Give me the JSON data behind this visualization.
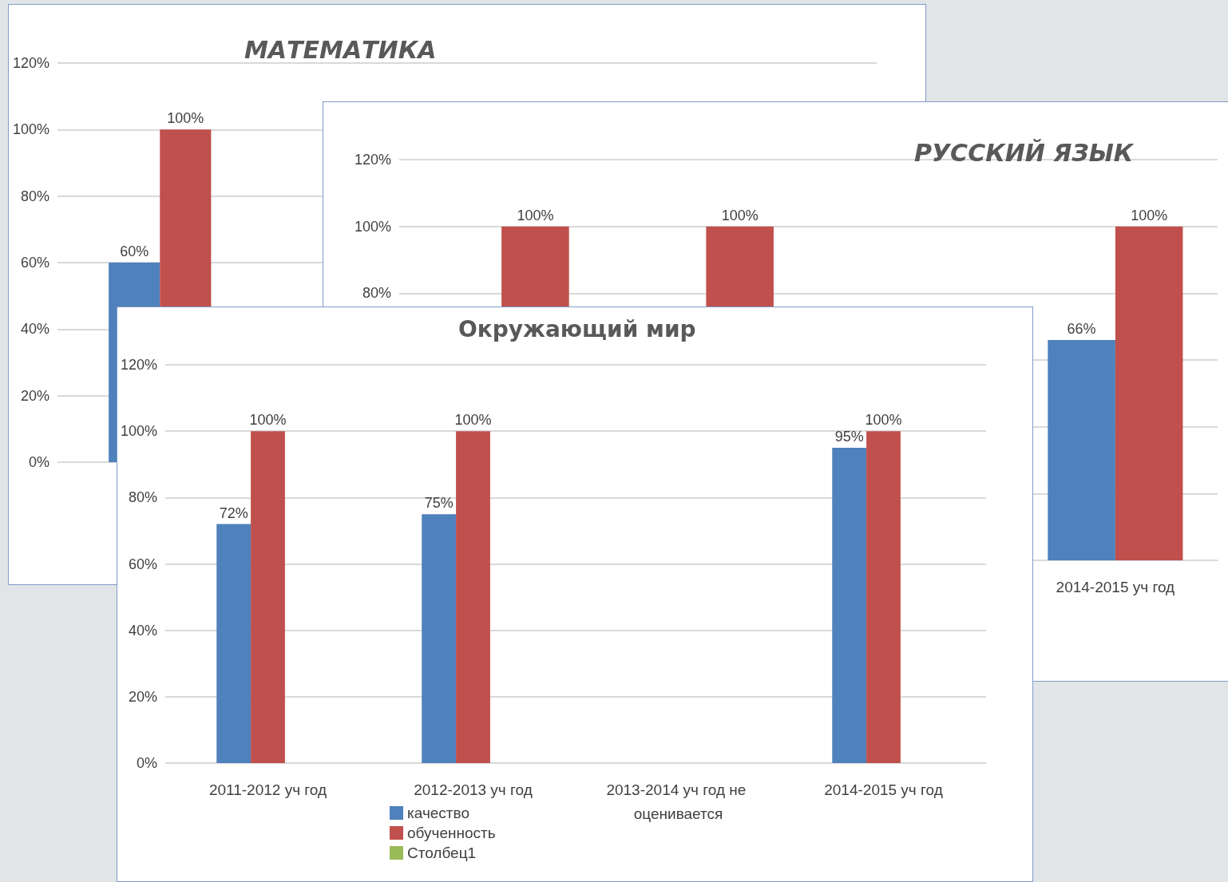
{
  "chart_data": [
    {
      "type": "bar",
      "title": "МАТЕМАТИКА",
      "categories": [
        null,
        null,
        null,
        null
      ],
      "ylim": [
        0,
        120
      ],
      "yticks": [
        {
          "value": 0,
          "label": "0%"
        },
        {
          "value": 20,
          "label": "20%"
        },
        {
          "value": 40,
          "label": "40%"
        },
        {
          "value": 60,
          "label": "60%"
        },
        {
          "value": 80,
          "label": "80%"
        },
        {
          "value": 100,
          "label": "100%"
        },
        {
          "value": 120,
          "label": "120%"
        }
      ],
      "grid": "y",
      "series": [
        {
          "color": "#4f81bd",
          "values": [
            60,
            null,
            null,
            null
          ],
          "value_labels": [
            "60%",
            null,
            null,
            null
          ]
        },
        {
          "color": "#c0504d",
          "values": [
            100,
            null,
            null,
            null
          ],
          "value_labels": [
            "100%",
            null,
            null,
            null
          ]
        }
      ]
    },
    {
      "type": "bar",
      "title": "РУССКИЙ ЯЗЫК",
      "categories": [
        null,
        null,
        null,
        "2014-2015 уч год"
      ],
      "ylim": [
        0,
        120
      ],
      "yticks": [
        {
          "value": 0,
          "label": null
        },
        {
          "value": 20,
          "label": null
        },
        {
          "value": 40,
          "label": null
        },
        {
          "value": 60,
          "label": null
        },
        {
          "value": 80,
          "label": "80%"
        },
        {
          "value": 100,
          "label": "100%"
        },
        {
          "value": 120,
          "label": "120%"
        }
      ],
      "grid": "y",
      "series": [
        {
          "color": "#4f81bd",
          "values": [
            null,
            null,
            null,
            66
          ],
          "value_labels": [
            null,
            null,
            null,
            "66%"
          ]
        },
        {
          "color": "#c0504d",
          "values": [
            100,
            100,
            null,
            100
          ],
          "value_labels": [
            "100%",
            "100%",
            null,
            "100%"
          ]
        }
      ]
    },
    {
      "type": "bar",
      "title": "Окружающий мир",
      "categories": [
        "2011-2012 уч год",
        "2012-2013 уч год",
        "2013-2014 уч год не оценивается",
        "2014-2015 уч год"
      ],
      "ylim": [
        0,
        120
      ],
      "yticks": [
        {
          "value": 0,
          "label": "0%"
        },
        {
          "value": 20,
          "label": "20%"
        },
        {
          "value": 40,
          "label": "40%"
        },
        {
          "value": 60,
          "label": "60%"
        },
        {
          "value": 80,
          "label": "80%"
        },
        {
          "value": 100,
          "label": "100%"
        },
        {
          "value": 120,
          "label": "120%"
        }
      ],
      "grid": "y",
      "legend": "bottom left",
      "series": [
        {
          "name": "качество",
          "color": "#4f81bd",
          "values": [
            72,
            75,
            null,
            95
          ],
          "value_labels": [
            "72%",
            "75%",
            null,
            "95%"
          ]
        },
        {
          "name": "обученность",
          "color": "#c0504d",
          "values": [
            100,
            100,
            null,
            100
          ],
          "value_labels": [
            "100%",
            "100%",
            null,
            "100%"
          ]
        },
        {
          "name": "Столбец1",
          "color": "#9bbb59",
          "values": [
            null,
            null,
            null,
            null
          ]
        }
      ]
    }
  ]
}
